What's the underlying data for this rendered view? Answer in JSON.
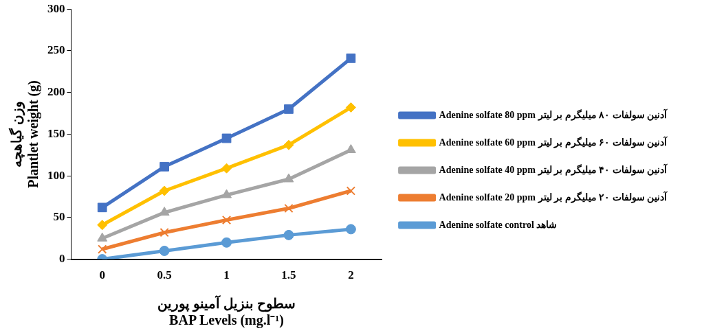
{
  "chart_data": {
    "type": "line",
    "xlabel": "سطوح بنزیل آمینو پورین\nBAP Levels (mg.l⁻¹)",
    "ylabel": "وزن گیاهچه\nPlantlet weight (g)",
    "categories": [
      "0",
      "0.5",
      "1",
      "1.5",
      "2"
    ],
    "ylim": [
      0,
      300
    ],
    "yticks": [
      0,
      50,
      100,
      150,
      200,
      250,
      300
    ],
    "grid": false,
    "legend": "right",
    "series": [
      {
        "name": "Adenine solfate 80 ppm آدنین سولفات ۸۰ میلیگرم بر لیتر",
        "color": "#4472c4",
        "marker": "square",
        "values": [
          62,
          111,
          145,
          180,
          241
        ]
      },
      {
        "name": "Adenine solfate 60 ppm آدنین سولفات ۶۰ میلیگرم بر لیتر",
        "color": "#ffc000",
        "marker": "diamond",
        "values": [
          41,
          82,
          109,
          137,
          182
        ]
      },
      {
        "name": "Adenine solfate 40 ppm آدنین سولفات ۴۰ میلیگرم بر لیتر",
        "color": "#a5a5a5",
        "marker": "triangle",
        "values": [
          25,
          56,
          77,
          96,
          131
        ]
      },
      {
        "name": "Adenine solfate 20 ppm آدنین سولفات ۲۰ میلیگرم بر لیتر",
        "color": "#ed7d31",
        "marker": "cross",
        "values": [
          12,
          32,
          47,
          61,
          82
        ]
      },
      {
        "name": "Adenine solfate control شاهد",
        "color": "#5b9bd5",
        "marker": "circle",
        "values": [
          0,
          10,
          20,
          29,
          36
        ]
      }
    ]
  }
}
